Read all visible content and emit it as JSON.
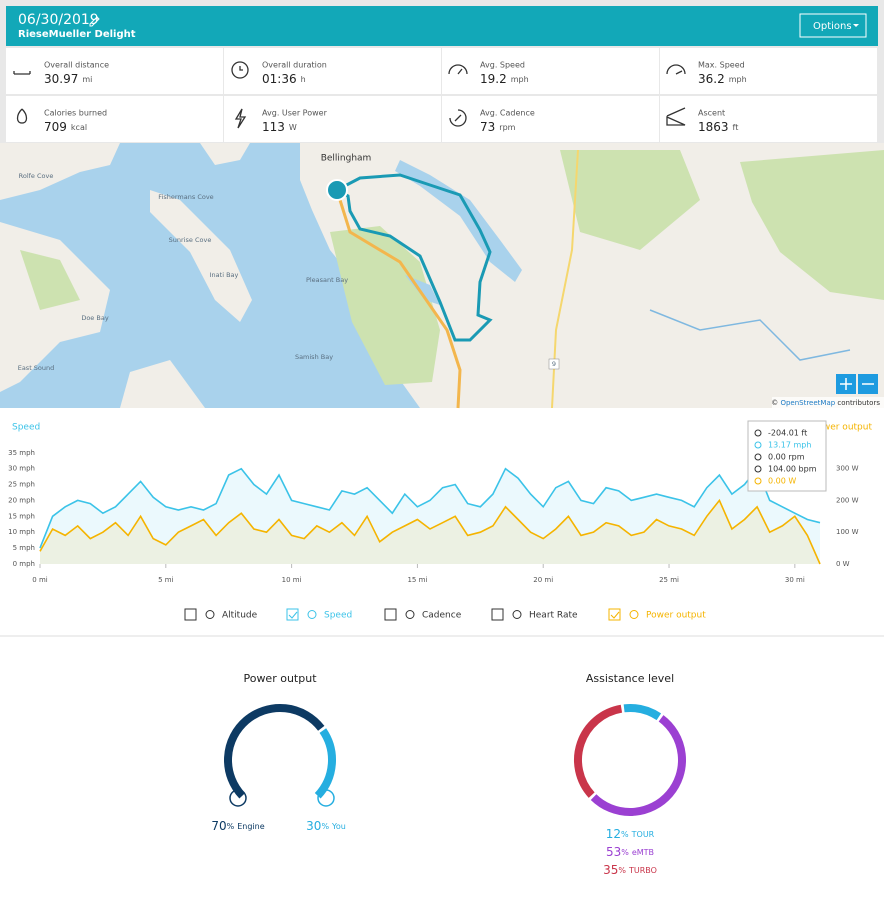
{
  "header": {
    "date": "06/30/2019",
    "bike": "RieseMueller Delight",
    "options": "Options"
  },
  "stats": [
    {
      "label": "Overall distance",
      "value": 30.97,
      "unit": "mi"
    },
    {
      "label": "Overall duration",
      "value": "01:36",
      "unit": "h"
    },
    {
      "label": "Avg. Speed",
      "value": 19.2,
      "unit": "mph"
    },
    {
      "label": "Max. Speed",
      "value": 36.2,
      "unit": "mph"
    },
    {
      "label": "Calories burned",
      "value": 709,
      "unit": "kcal"
    },
    {
      "label": "Avg. User Power",
      "value": 113,
      "unit": "W"
    },
    {
      "label": "Avg. Cadence",
      "value": 73,
      "unit": "rpm"
    },
    {
      "label": "Ascent",
      "value": 1863,
      "unit": "ft"
    }
  ],
  "map": {
    "labels": [
      "Bellingham",
      "Fishermans Cove",
      "Sunrise Cove",
      "Inati Bay",
      "Pleasant Bay",
      "Samish Bay",
      "Doe Bay",
      "East Sound",
      "Rolfe Cove",
      "9"
    ],
    "attribution": {
      "prefix": "©",
      "link": "OpenStreetMap",
      "suffix": "contributors"
    }
  },
  "chart_data": {
    "type": "line",
    "x": [
      0,
      0.5,
      1,
      1.5,
      2,
      2.5,
      3,
      3.5,
      4,
      4.5,
      5,
      5.5,
      6,
      6.5,
      7,
      7.5,
      8,
      8.5,
      9,
      9.5,
      10,
      10.5,
      11,
      11.5,
      12,
      12.5,
      13,
      13.5,
      14,
      14.5,
      15,
      15.5,
      16,
      16.5,
      17,
      17.5,
      18,
      18.5,
      19,
      19.5,
      20,
      20.5,
      21,
      21.5,
      22,
      22.5,
      23,
      23.5,
      24,
      24.5,
      25,
      25.5,
      26,
      26.5,
      27,
      27.5,
      28,
      28.5,
      29,
      29.5,
      30,
      30.5,
      31
    ],
    "series": [
      {
        "name": "Speed",
        "color": "#3bc3e8",
        "values": [
          5,
          15,
          18,
          20,
          19,
          16,
          18,
          22,
          26,
          21,
          18,
          17,
          18,
          17,
          19,
          28,
          30,
          25,
          22,
          28,
          20,
          19,
          18,
          17,
          23,
          22,
          24,
          20,
          16,
          22,
          18,
          20,
          24,
          25,
          19,
          18,
          22,
          30,
          27,
          22,
          18,
          24,
          26,
          20,
          19,
          24,
          23,
          20,
          21,
          22,
          21,
          20,
          18,
          24,
          28,
          22,
          25,
          30,
          20,
          18,
          16,
          14,
          13
        ]
      },
      {
        "name": "Power output",
        "color": "#f5b400",
        "axis": "y2",
        "values": [
          40,
          110,
          90,
          120,
          80,
          100,
          130,
          90,
          150,
          80,
          60,
          100,
          120,
          140,
          90,
          130,
          160,
          110,
          100,
          140,
          90,
          80,
          120,
          100,
          130,
          90,
          150,
          70,
          100,
          120,
          140,
          110,
          130,
          150,
          90,
          100,
          120,
          180,
          140,
          100,
          80,
          110,
          150,
          90,
          100,
          130,
          120,
          90,
          100,
          140,
          120,
          110,
          90,
          150,
          200,
          110,
          140,
          180,
          100,
          120,
          150,
          90,
          0
        ]
      }
    ],
    "xlim": [
      0,
      31
    ],
    "xticks": [
      {
        "value": 0,
        "label": "0 mi"
      },
      {
        "value": 5,
        "label": "5 mi"
      },
      {
        "value": 10,
        "label": "10 mi"
      },
      {
        "value": 15,
        "label": "15 mi"
      },
      {
        "value": 20,
        "label": "20 mi"
      },
      {
        "value": 25,
        "label": "25 mi"
      },
      {
        "value": 30,
        "label": "30 mi"
      }
    ],
    "ylim": [
      0,
      36.5
    ],
    "yticks": [
      {
        "value": 0,
        "label": "0 mph"
      },
      {
        "value": 5,
        "label": "5 mph"
      },
      {
        "value": 10,
        "label": "10 mph"
      },
      {
        "value": 15,
        "label": "15 mph"
      },
      {
        "value": 20,
        "label": "20 mph"
      },
      {
        "value": 25,
        "label": "25 mph"
      },
      {
        "value": 30,
        "label": "30 mph"
      },
      {
        "value": 35,
        "label": "35 mph"
      }
    ],
    "y2lim": [
      0,
      365
    ],
    "y2ticks": [
      {
        "value": 0,
        "label": "0 W"
      },
      {
        "value": 100,
        "label": "100 W"
      },
      {
        "value": 200,
        "label": "200 W"
      },
      {
        "value": 300,
        "label": "300 W"
      }
    ],
    "tooltip": [
      {
        "text": "-204.01 ft",
        "color": "#333333"
      },
      {
        "text": "13.17 mph",
        "color": "#3bc3e8"
      },
      {
        "text": "0.00 rpm",
        "color": "#333333"
      },
      {
        "text": "104.00 bpm",
        "color": "#333333"
      },
      {
        "text": "0.00 W",
        "color": "#f5b400"
      }
    ],
    "legend": [
      "Altitude",
      "Speed",
      "Cadence",
      "Heart Rate",
      "Power output"
    ],
    "legend_checked": [
      false,
      true,
      false,
      false,
      true
    ]
  },
  "donuts": [
    {
      "title": "Power output",
      "type": "gauge",
      "segments": [
        {
          "name": "Engine",
          "value": 70,
          "unit": "%",
          "color": "#0d3a63"
        },
        {
          "name": "You",
          "value": 30,
          "unit": "%",
          "color": "#25aee0"
        }
      ]
    },
    {
      "title": "Assistance level",
      "type": "ring",
      "segments": [
        {
          "name": "TOUR",
          "value": 12,
          "unit": "%",
          "color": "#25aee0"
        },
        {
          "name": "eMTB",
          "value": 53,
          "unit": "%",
          "color": "#9b40d2"
        },
        {
          "name": "TURBO",
          "value": 35,
          "unit": "%",
          "color": "#c9354a"
        }
      ]
    }
  ]
}
